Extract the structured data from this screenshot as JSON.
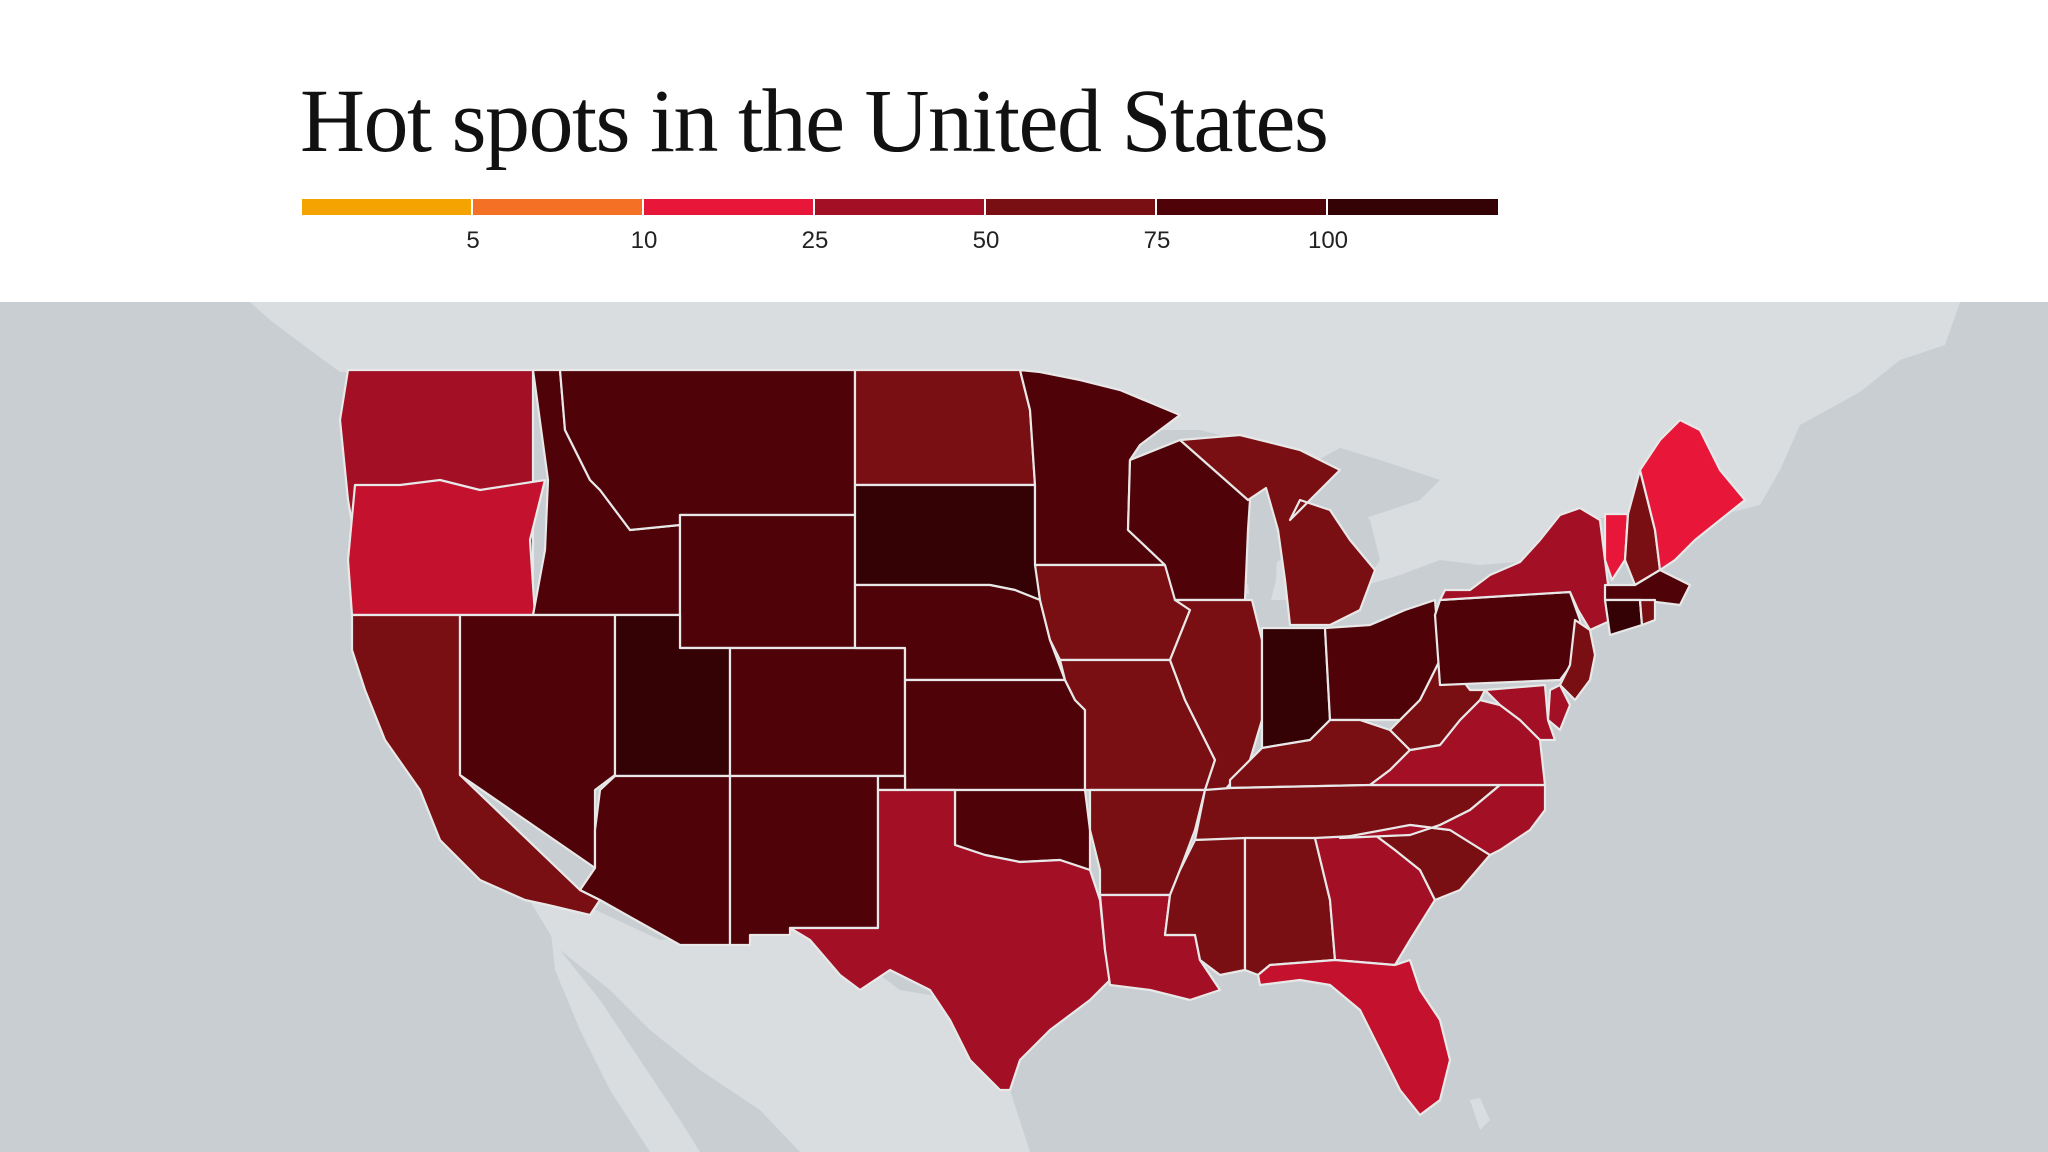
{
  "title": "Hot spots in the United States",
  "legend": {
    "colors": [
      "#f5a300",
      "#f47024",
      "#e8173a",
      "#a30f25",
      "#7a0f13",
      "#4f0308",
      "#340105"
    ],
    "ticks": [
      "5",
      "10",
      "25",
      "50",
      "75",
      "100"
    ]
  },
  "map": {
    "water_color": "#c8ced2",
    "land_color": "#d9dde0",
    "border_color": "#e8e8e8",
    "states": [
      {
        "id": "WA",
        "color": "#a30f25"
      },
      {
        "id": "OR",
        "color": "#c3112e"
      },
      {
        "id": "CA",
        "color": "#7a0f13"
      },
      {
        "id": "ID",
        "color": "#4f0308"
      },
      {
        "id": "NV",
        "color": "#4f0308"
      },
      {
        "id": "MT",
        "color": "#4f0308"
      },
      {
        "id": "WY",
        "color": "#4f0308"
      },
      {
        "id": "UT",
        "color": "#340105"
      },
      {
        "id": "AZ",
        "color": "#4f0308"
      },
      {
        "id": "CO",
        "color": "#4f0308"
      },
      {
        "id": "NM",
        "color": "#4f0308"
      },
      {
        "id": "ND",
        "color": "#7a0f13"
      },
      {
        "id": "SD",
        "color": "#340105"
      },
      {
        "id": "NE",
        "color": "#4f0308"
      },
      {
        "id": "KS",
        "color": "#4f0308"
      },
      {
        "id": "OK",
        "color": "#4f0308"
      },
      {
        "id": "TX",
        "color": "#a30f25"
      },
      {
        "id": "MN",
        "color": "#4f0308"
      },
      {
        "id": "IA",
        "color": "#7a0f13"
      },
      {
        "id": "MO",
        "color": "#7a0f13"
      },
      {
        "id": "AR",
        "color": "#7a0f13"
      },
      {
        "id": "LA",
        "color": "#a30f25"
      },
      {
        "id": "WI",
        "color": "#4f0308"
      },
      {
        "id": "IL",
        "color": "#7a0f13"
      },
      {
        "id": "MI",
        "color": "#7a0f13"
      },
      {
        "id": "IN",
        "color": "#340105"
      },
      {
        "id": "OH",
        "color": "#4f0308"
      },
      {
        "id": "KY",
        "color": "#7a0f13"
      },
      {
        "id": "TN",
        "color": "#7a0f13"
      },
      {
        "id": "MS",
        "color": "#7a0f13"
      },
      {
        "id": "AL",
        "color": "#7a0f13"
      },
      {
        "id": "GA",
        "color": "#a30f25"
      },
      {
        "id": "FL",
        "color": "#c3112e"
      },
      {
        "id": "SC",
        "color": "#7a0f13"
      },
      {
        "id": "NC",
        "color": "#a30f25"
      },
      {
        "id": "VA",
        "color": "#a30f25"
      },
      {
        "id": "WV",
        "color": "#7a0f13"
      },
      {
        "id": "PA",
        "color": "#4f0308"
      },
      {
        "id": "NY",
        "color": "#a30f25"
      },
      {
        "id": "NJ",
        "color": "#7a0f13"
      },
      {
        "id": "DE",
        "color": "#a30f25"
      },
      {
        "id": "MD",
        "color": "#a30f25"
      },
      {
        "id": "VT",
        "color": "#e8173a"
      },
      {
        "id": "NH",
        "color": "#7a0f13"
      },
      {
        "id": "ME",
        "color": "#e8173a"
      },
      {
        "id": "MA",
        "color": "#4f0308"
      },
      {
        "id": "CT",
        "color": "#340105"
      },
      {
        "id": "RI",
        "color": "#7a0f13"
      }
    ]
  }
}
